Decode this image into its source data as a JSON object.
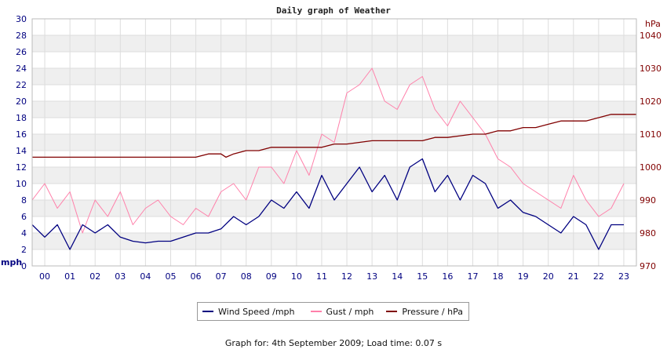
{
  "chart_data": {
    "type": "line",
    "title": "Daily graph of Weather",
    "x_ticks": [
      "00",
      "01",
      "02",
      "03",
      "04",
      "05",
      "06",
      "07",
      "08",
      "09",
      "10",
      "11",
      "12",
      "13",
      "14",
      "15",
      "16",
      "17",
      "18",
      "19",
      "20",
      "21",
      "22",
      "23"
    ],
    "xlim": [
      -0.5,
      23.5
    ],
    "ylim_left": [
      0,
      30
    ],
    "y_ticks_left": [
      0,
      2,
      4,
      6,
      8,
      10,
      12,
      14,
      16,
      18,
      20,
      22,
      24,
      26,
      28,
      30
    ],
    "ylabel_left": "mph",
    "ylim_right": [
      970,
      1045
    ],
    "y_ticks_right": [
      970,
      980,
      990,
      1000,
      1010,
      1020,
      1030,
      1040
    ],
    "ylabel_right": "hPa",
    "grid": true,
    "legend_position": "bottom-center",
    "colors": {
      "wind": "#000080",
      "gust": "#ff80aa",
      "pressure": "#800000",
      "grid_band": "#efefef",
      "axis_text": "#000080",
      "right_text": "#800000"
    },
    "series": [
      {
        "name": "Wind Speed /mph",
        "axis": "left",
        "x": [
          -0.5,
          0,
          0.5,
          1,
          1.5,
          2,
          2.5,
          3,
          3.5,
          4,
          4.5,
          5,
          5.5,
          6,
          6.5,
          7,
          7.5,
          8,
          8.5,
          9,
          9.5,
          10,
          10.5,
          11,
          11.5,
          12,
          12.5,
          13,
          13.5,
          14,
          14.5,
          15,
          15.5,
          16,
          16.5,
          17,
          17.5,
          18,
          18.5,
          19,
          19.5,
          20,
          20.5,
          21,
          21.5,
          22,
          22.5,
          23
        ],
        "values": [
          5,
          3.5,
          5,
          2,
          5,
          4,
          5,
          3.5,
          3,
          2.8,
          3,
          3,
          3.5,
          4,
          4,
          4.5,
          6,
          5,
          6,
          8,
          7,
          9,
          7,
          11,
          8,
          10,
          12,
          9,
          11,
          8,
          12,
          13,
          9,
          11,
          8,
          11,
          10,
          7,
          8,
          6.5,
          6,
          5,
          4,
          6,
          5,
          2,
          5,
          5
        ]
      },
      {
        "name": "Gust / mph",
        "axis": "left",
        "x": [
          -0.5,
          0,
          0.5,
          1,
          1.5,
          2,
          2.5,
          3,
          3.5,
          4,
          4.5,
          5,
          5.5,
          6,
          6.5,
          7,
          7.5,
          8,
          8.5,
          9,
          9.5,
          10,
          10.5,
          11,
          11.5,
          12,
          12.5,
          13,
          13.5,
          14,
          14.5,
          15,
          15.5,
          16,
          16.5,
          17,
          17.5,
          18,
          18.5,
          19,
          19.5,
          20,
          20.5,
          21,
          21.5,
          22,
          22.5,
          23
        ],
        "values": [
          8,
          10,
          7,
          9,
          4,
          8,
          6,
          9,
          5,
          7,
          8,
          6,
          5,
          7,
          6,
          9,
          10,
          8,
          12,
          12,
          10,
          14,
          11,
          16,
          15,
          21,
          22,
          24,
          20,
          19,
          22,
          23,
          19,
          17,
          20,
          18,
          16,
          13,
          12,
          10,
          9,
          8,
          7,
          11,
          8,
          6,
          7,
          10
        ]
      },
      {
        "name": "Pressure / hPa",
        "axis": "right",
        "x": [
          -0.5,
          1,
          3,
          5,
          6,
          6.5,
          7,
          7.2,
          7.5,
          8,
          8.5,
          9,
          9.5,
          10,
          11,
          11.5,
          12,
          12.5,
          13,
          14,
          14.5,
          15,
          15.5,
          16,
          16.5,
          17,
          17.5,
          18,
          18.5,
          19,
          19.5,
          20,
          20.5,
          21,
          21.5,
          22,
          22.5,
          23.5
        ],
        "values": [
          1003,
          1003,
          1003,
          1003,
          1003,
          1004,
          1004,
          1003,
          1004,
          1005,
          1005,
          1006,
          1006,
          1006,
          1006,
          1007,
          1007,
          1007.5,
          1008,
          1008,
          1008,
          1008,
          1009,
          1009,
          1009.5,
          1010,
          1010,
          1011,
          1011,
          1012,
          1012,
          1013,
          1014,
          1014,
          1014,
          1015,
          1016,
          1016
        ]
      }
    ]
  },
  "legend": {
    "wind": "Wind Speed /mph",
    "gust": "Gust / mph",
    "pressure": "Pressure / hPa"
  },
  "footer": "Graph for: 4th September 2009; Load time: 0.07 s"
}
